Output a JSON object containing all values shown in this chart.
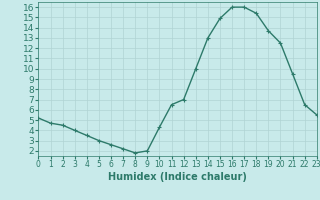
{
  "x": [
    0,
    1,
    2,
    3,
    4,
    5,
    6,
    7,
    8,
    9,
    10,
    11,
    12,
    13,
    14,
    15,
    16,
    17,
    18,
    19,
    20,
    21,
    22,
    23
  ],
  "y": [
    5.2,
    4.7,
    4.5,
    4.0,
    3.5,
    3.0,
    2.6,
    2.2,
    1.8,
    2.0,
    4.3,
    6.5,
    7.0,
    10.0,
    13.0,
    14.9,
    16.0,
    16.0,
    15.4,
    13.7,
    12.5,
    9.5,
    6.5,
    5.5
  ],
  "line_color": "#2d7a6a",
  "marker": "+",
  "marker_size": 3,
  "linewidth": 1.0,
  "xlabel": "Humidex (Indice chaleur)",
  "xlim": [
    0,
    23
  ],
  "ylim": [
    1.5,
    16.5
  ],
  "yticks": [
    2,
    3,
    4,
    5,
    6,
    7,
    8,
    9,
    10,
    11,
    12,
    13,
    14,
    15,
    16
  ],
  "xticks": [
    0,
    1,
    2,
    3,
    4,
    5,
    6,
    7,
    8,
    9,
    10,
    11,
    12,
    13,
    14,
    15,
    16,
    17,
    18,
    19,
    20,
    21,
    22,
    23
  ],
  "background_color": "#c8eaea",
  "grid_color": "#b0d4d4",
  "tick_label_color": "#2d7a6a",
  "xlabel_color": "#2d7a6a",
  "xlabel_fontsize": 7,
  "tick_fontsize": 6.5
}
